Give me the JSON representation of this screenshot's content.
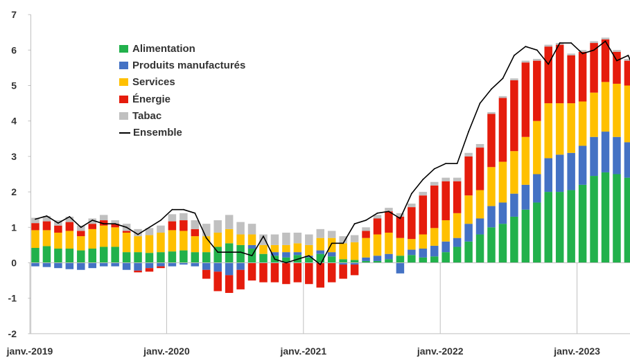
{
  "chart_data": {
    "type": "bar",
    "title": "",
    "xlabel": "",
    "ylabel": "",
    "ylim": [
      -2,
      7
    ],
    "yticks": [
      "-2",
      "-1",
      "0",
      "1",
      "2",
      "3",
      "4",
      "5",
      "6",
      "7"
    ],
    "xticks": [
      {
        "label": "janv.-2019",
        "index": 0
      },
      {
        "label": "janv.-2020",
        "index": 12
      },
      {
        "label": "janv.-2021",
        "index": 24
      },
      {
        "label": "janv.-2022",
        "index": 36
      },
      {
        "label": "janv.-2023",
        "index": 48
      }
    ],
    "grid": false,
    "legend_position": "top-left",
    "categories": [
      "01/2019",
      "02/2019",
      "03/2019",
      "04/2019",
      "05/2019",
      "06/2019",
      "07/2019",
      "08/2019",
      "09/2019",
      "10/2019",
      "11/2019",
      "12/2019",
      "01/2020",
      "02/2020",
      "03/2020",
      "04/2020",
      "05/2020",
      "06/2020",
      "07/2020",
      "08/2020",
      "09/2020",
      "10/2020",
      "11/2020",
      "12/2020",
      "01/2021",
      "02/2021",
      "03/2021",
      "04/2021",
      "05/2021",
      "06/2021",
      "07/2021",
      "08/2021",
      "09/2021",
      "10/2021",
      "11/2021",
      "12/2021",
      "01/2022",
      "02/2022",
      "03/2022",
      "04/2022",
      "05/2022",
      "06/2022",
      "07/2022",
      "08/2022",
      "09/2022",
      "10/2022",
      "11/2022",
      "12/2022",
      "01/2023",
      "02/2023",
      "03/2023",
      "04/2023",
      "05/2023",
      "06/2023"
    ],
    "series": [
      {
        "name": "Alimentation",
        "color": "#22b14c",
        "stack": "bar",
        "values": [
          0.42,
          0.47,
          0.4,
          0.4,
          0.35,
          0.4,
          0.45,
          0.45,
          0.3,
          0.3,
          0.28,
          0.3,
          0.32,
          0.35,
          0.3,
          0.3,
          0.45,
          0.55,
          0.5,
          0.4,
          0.25,
          0.2,
          0.15,
          0.22,
          0.15,
          0.25,
          0.18,
          0.1,
          0.08,
          0.05,
          0.05,
          0.1,
          0.2,
          0.22,
          0.15,
          0.18,
          0.3,
          0.45,
          0.6,
          0.8,
          1.0,
          1.1,
          1.3,
          1.5,
          1.7,
          2.0,
          2.0,
          2.05,
          2.2,
          2.45,
          2.55,
          2.5,
          2.4,
          2.2
        ]
      },
      {
        "name": "Produits manufacturés",
        "color": "#4472c4",
        "stack": "bar",
        "values": [
          -0.1,
          -0.12,
          -0.15,
          -0.18,
          -0.2,
          -0.15,
          -0.1,
          -0.1,
          -0.2,
          -0.22,
          -0.15,
          -0.1,
          -0.1,
          -0.05,
          -0.1,
          -0.2,
          -0.25,
          -0.35,
          -0.2,
          0.1,
          0.0,
          0.1,
          0.15,
          0.08,
          0.05,
          0.1,
          0.12,
          -0.05,
          -0.05,
          0.1,
          0.15,
          0.15,
          -0.3,
          0.15,
          0.25,
          0.3,
          0.3,
          0.25,
          0.5,
          0.45,
          0.6,
          0.6,
          0.65,
          0.7,
          0.8,
          0.95,
          1.05,
          1.05,
          1.1,
          1.1,
          1.15,
          1.05,
          1.0,
          1.1
        ]
      },
      {
        "name": "Services",
        "color": "#ffc000",
        "stack": "bar",
        "values": [
          0.5,
          0.45,
          0.45,
          0.5,
          0.4,
          0.55,
          0.6,
          0.55,
          0.55,
          0.45,
          0.5,
          0.55,
          0.6,
          0.55,
          0.45,
          0.45,
          0.4,
          0.4,
          0.3,
          0.3,
          0.25,
          0.2,
          0.2,
          0.25,
          0.3,
          0.35,
          0.4,
          0.45,
          0.5,
          0.55,
          0.6,
          0.6,
          0.5,
          0.3,
          0.4,
          0.5,
          0.6,
          0.7,
          0.8,
          0.8,
          1.1,
          1.15,
          1.2,
          1.35,
          1.5,
          1.55,
          1.45,
          1.4,
          1.25,
          1.25,
          1.4,
          1.5,
          1.6,
          1.5
        ]
      },
      {
        "name": "Énergie",
        "color": "#e51c0c",
        "stack": "bar",
        "values": [
          0.2,
          0.25,
          0.2,
          0.25,
          0.15,
          0.15,
          0.15,
          0.1,
          0.05,
          -0.05,
          -0.1,
          -0.05,
          0.25,
          0.3,
          0.2,
          -0.25,
          -0.55,
          -0.5,
          -0.55,
          -0.5,
          -0.55,
          -0.55,
          -0.6,
          -0.55,
          -0.6,
          -0.7,
          -0.55,
          -0.4,
          -0.3,
          0.2,
          0.45,
          0.6,
          0.6,
          0.9,
          1.1,
          1.2,
          1.1,
          0.9,
          1.1,
          1.2,
          1.5,
          1.8,
          2.0,
          2.1,
          1.7,
          1.6,
          1.65,
          1.35,
          1.4,
          1.4,
          1.2,
          0.9,
          0.7,
          0.2
        ]
      },
      {
        "name": "Tabac",
        "color": "#c0c0c0",
        "stack": "bar",
        "values": [
          0.15,
          0.15,
          0.15,
          0.15,
          0.15,
          0.15,
          0.15,
          0.1,
          0.2,
          0.2,
          0.2,
          0.2,
          0.2,
          0.2,
          0.25,
          0.35,
          0.35,
          0.4,
          0.35,
          0.3,
          0.3,
          0.3,
          0.35,
          0.3,
          0.3,
          0.25,
          0.2,
          0.2,
          0.2,
          0.1,
          0.1,
          0.1,
          0.1,
          0.1,
          0.1,
          0.1,
          0.1,
          0.1,
          0.1,
          0.1,
          0.05,
          0.05,
          0.05,
          0.05,
          0.05,
          0.05,
          0.05,
          0.05,
          0.05,
          0.05,
          0.05,
          0.05,
          0.05,
          0.05
        ]
      },
      {
        "name": "Ensemble",
        "color": "#000000",
        "stack": "line",
        "values": [
          1.23,
          1.32,
          1.12,
          1.3,
          1.0,
          1.2,
          1.1,
          1.1,
          1.0,
          0.8,
          1.0,
          1.2,
          1.5,
          1.5,
          1.4,
          0.7,
          0.3,
          0.3,
          0.3,
          0.2,
          0.75,
          0.1,
          0.0,
          0.1,
          0.2,
          -0.05,
          0.55,
          0.55,
          1.1,
          1.2,
          1.4,
          1.45,
          1.25,
          1.95,
          2.35,
          2.65,
          2.8,
          2.8,
          3.7,
          4.5,
          4.9,
          5.2,
          5.85,
          6.1,
          6.0,
          5.6,
          6.2,
          6.2,
          5.9,
          6.0,
          6.25,
          5.7,
          5.85,
          5.1
        ]
      }
    ]
  },
  "legend": [
    {
      "name": "Alimentation",
      "kind": "swatch",
      "color": "#22b14c"
    },
    {
      "name": "Produits manufacturés",
      "kind": "swatch",
      "color": "#4472c4"
    },
    {
      "name": "Services",
      "kind": "swatch",
      "color": "#ffc000"
    },
    {
      "name": "Énergie",
      "kind": "swatch",
      "color": "#e51c0c"
    },
    {
      "name": "Tabac",
      "kind": "swatch",
      "color": "#c0c0c0"
    },
    {
      "name": "Ensemble",
      "kind": "line",
      "color": "#000000"
    }
  ]
}
